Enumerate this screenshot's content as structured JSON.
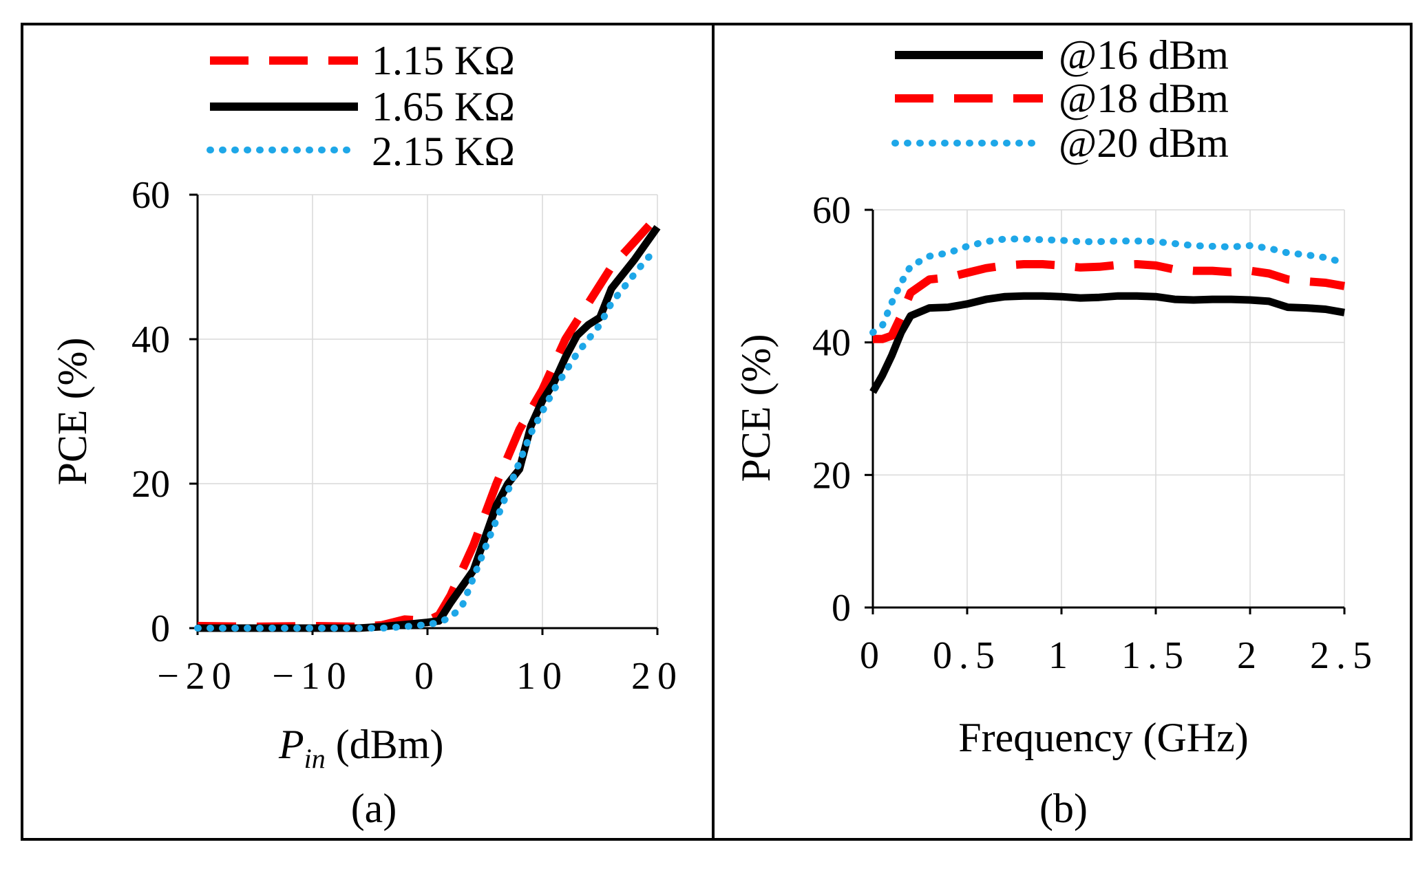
{
  "figure": {
    "palette": {
      "red": "#ff0000",
      "black": "#000000",
      "blue": "#1ea7e8",
      "grid": "#d9d9d9"
    }
  },
  "chart_data": [
    {
      "type": "line",
      "caption": "(a)",
      "ylabel": "PCE (%)",
      "xlabel_main": "P",
      "xlabel_sub": "in",
      "xlabel_rest": " (dBm)",
      "xlim": [
        -20,
        20
      ],
      "ylim": [
        0,
        60
      ],
      "xticks": [
        -20,
        -10,
        0,
        10,
        20
      ],
      "xtick_labels": [
        "−20",
        "−10",
        "0",
        "10",
        "20"
      ],
      "yticks": [
        0,
        20,
        40,
        60
      ],
      "ytick_labels": [
        "0",
        "20",
        "40",
        "60"
      ],
      "grid": true,
      "legend_position": "top",
      "series": [
        {
          "name": "1.15 KΩ",
          "color": "#ff0000",
          "style": "dashed",
          "x": [
            -20,
            -15,
            -10,
            -6,
            -4,
            -2,
            0,
            1,
            2,
            4,
            6,
            8,
            10,
            12,
            14,
            16,
            18,
            20
          ],
          "y": [
            0.3,
            0.2,
            0.3,
            0.2,
            0.4,
            1.2,
            1.0,
            1.8,
            4.5,
            11.5,
            20,
            27.5,
            33,
            40,
            45,
            50,
            53.5,
            57
          ]
        },
        {
          "name": "1.65 KΩ",
          "color": "#000000",
          "style": "solid",
          "x": [
            -20,
            -15,
            -10,
            -6,
            -4,
            -2,
            0,
            1,
            2,
            4,
            6,
            7,
            8,
            9,
            10,
            11,
            12,
            13,
            14,
            15,
            16,
            17,
            18,
            20
          ],
          "y": [
            0,
            0,
            0,
            0,
            0.2,
            0.5,
            0.8,
            1.0,
            3.5,
            8,
            17,
            20,
            22,
            28,
            31.5,
            34,
            37.5,
            40.5,
            42,
            43,
            47,
            49,
            51,
            55.5
          ]
        },
        {
          "name": "2.15 KΩ",
          "color": "#1ea7e8",
          "style": "dotted",
          "x": [
            -20,
            -15,
            -10,
            -6,
            -4,
            -2,
            0,
            1,
            2,
            3,
            4,
            5,
            6,
            7,
            8,
            9,
            10,
            11,
            12,
            13,
            14,
            15,
            16,
            17,
            18,
            19,
            20
          ],
          "y": [
            0,
            0,
            0,
            0,
            0,
            0.2,
            0.5,
            0.8,
            1.5,
            3,
            7,
            11,
            15,
            19,
            23,
            27,
            30,
            33,
            35.5,
            38,
            40,
            42,
            45,
            47,
            49,
            51,
            52.5
          ]
        }
      ]
    },
    {
      "type": "line",
      "caption": "(b)",
      "ylabel": "PCE (%)",
      "xlabel": "Frequency (GHz)",
      "xlim": [
        0,
        2.5
      ],
      "ylim": [
        0,
        60
      ],
      "xticks": [
        0,
        0.5,
        1,
        1.5,
        2,
        2.5
      ],
      "xtick_labels": [
        "0",
        "0.5",
        "1",
        "1.5",
        "2",
        "2.5"
      ],
      "yticks": [
        0,
        20,
        40,
        60
      ],
      "ytick_labels": [
        "0",
        "20",
        "40",
        "60"
      ],
      "grid": true,
      "legend_position": "top",
      "series": [
        {
          "name": "@16 dBm",
          "color": "#000000",
          "style": "solid",
          "x": [
            0,
            0.05,
            0.1,
            0.15,
            0.2,
            0.3,
            0.4,
            0.5,
            0.6,
            0.7,
            0.8,
            0.9,
            1.0,
            1.1,
            1.2,
            1.3,
            1.4,
            1.5,
            1.6,
            1.7,
            1.8,
            1.9,
            2.0,
            2.1,
            2.2,
            2.3,
            2.4,
            2.5
          ],
          "y": [
            32.5,
            35,
            38,
            41.5,
            44,
            45.2,
            45.3,
            45.8,
            46.5,
            46.9,
            47.0,
            47.0,
            46.9,
            46.7,
            46.8,
            47.0,
            47.0,
            46.9,
            46.5,
            46.4,
            46.5,
            46.5,
            46.4,
            46.2,
            45.3,
            45.2,
            45.0,
            44.5
          ]
        },
        {
          "name": "@18 dBm",
          "color": "#ff0000",
          "style": "dashed",
          "x": [
            0,
            0.05,
            0.1,
            0.15,
            0.2,
            0.3,
            0.4,
            0.5,
            0.6,
            0.7,
            0.8,
            0.9,
            1.0,
            1.1,
            1.2,
            1.3,
            1.4,
            1.5,
            1.6,
            1.7,
            1.8,
            1.9,
            2.0,
            2.1,
            2.2,
            2.3,
            2.4,
            2.5
          ],
          "y": [
            40.5,
            40.5,
            41,
            44,
            47.5,
            49.5,
            49.8,
            50.5,
            51.2,
            51.6,
            51.8,
            51.8,
            51.6,
            51.3,
            51.4,
            51.7,
            51.8,
            51.6,
            51.0,
            50.8,
            50.8,
            50.6,
            50.8,
            50.4,
            49.5,
            49.2,
            49.0,
            48.5
          ]
        },
        {
          "name": "@20 dBm",
          "color": "#1ea7e8",
          "style": "dotted",
          "x": [
            0,
            0.05,
            0.1,
            0.15,
            0.2,
            0.3,
            0.4,
            0.5,
            0.6,
            0.7,
            0.8,
            0.9,
            1.0,
            1.1,
            1.2,
            1.3,
            1.4,
            1.5,
            1.6,
            1.7,
            1.8,
            1.9,
            2.0,
            2.1,
            2.2,
            2.3,
            2.4,
            2.5
          ],
          "y": [
            41.5,
            42.5,
            46,
            49,
            51.5,
            53,
            53.5,
            54.5,
            55.2,
            55.6,
            55.6,
            55.5,
            55.4,
            55.2,
            55.2,
            55.3,
            55.3,
            55.2,
            54.9,
            54.6,
            54.5,
            54.4,
            54.6,
            54.2,
            53.5,
            53.2,
            52.8,
            52.0
          ]
        }
      ]
    }
  ]
}
